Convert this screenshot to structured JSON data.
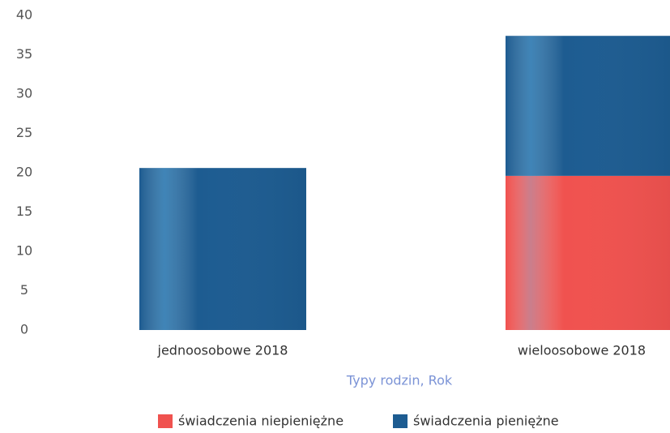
{
  "chart_data": {
    "type": "stacked_bar",
    "categories": [
      "jednoosobowe 2018",
      "wieloosobowe 2018"
    ],
    "series": [
      {
        "name": "świadczenia niepieniężne",
        "color": "#f0524f",
        "values": [
          0,
          19.6
        ]
      },
      {
        "name": "świadczenia pieniężne",
        "color": "#1d5c91",
        "values": [
          20.6,
          17.8
        ]
      }
    ],
    "x_label": "Typy rodzin, Rok",
    "ylim": [
      0,
      40
    ],
    "yticks": [
      0,
      5,
      10,
      15,
      20,
      25,
      30,
      35,
      40
    ],
    "grid": false,
    "legend": "bottom"
  }
}
